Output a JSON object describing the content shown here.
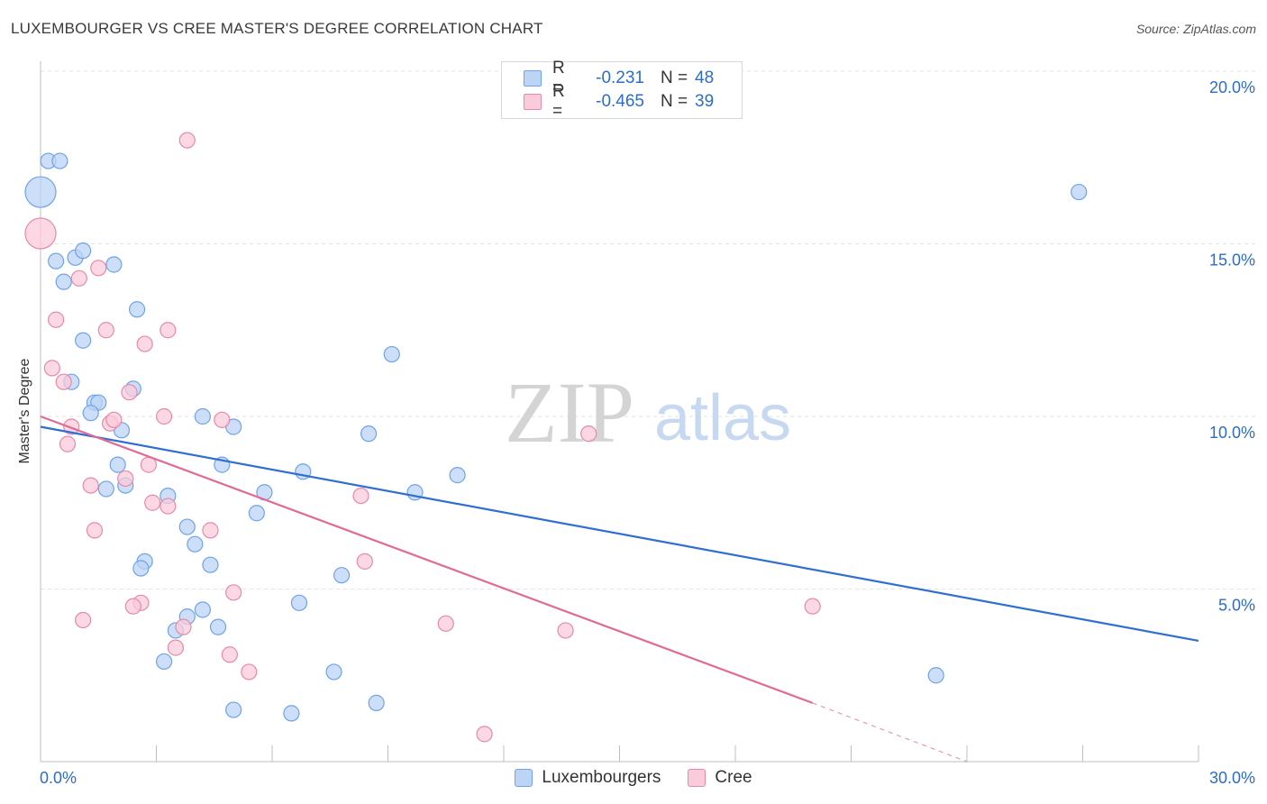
{
  "title": "LUXEMBOURGER VS CREE MASTER'S DEGREE CORRELATION CHART",
  "source": "Source: ZipAtlas.com",
  "watermark": {
    "zip": "ZIP",
    "atlas": "atlas"
  },
  "stats": [
    {
      "label": "R =",
      "r": "-0.231",
      "n_label": "N =",
      "n": "48",
      "color": "#6fa3e5",
      "fill": "#bcd4f5"
    },
    {
      "label": "R =",
      "r": "-0.465",
      "n_label": "N =",
      "n": "39",
      "color": "#e68aa8",
      "fill": "#f9cbdb"
    }
  ],
  "legend": [
    {
      "label": "Luxembourgers",
      "color": "#6fa3e5",
      "fill": "#bcd4f5"
    },
    {
      "label": "Cree",
      "color": "#e68aa8",
      "fill": "#f9cbdb"
    }
  ],
  "chart_data": {
    "type": "scatter",
    "title": "LUXEMBOURGER VS CREE MASTER'S DEGREE CORRELATION CHART",
    "xlabel": "",
    "ylabel": "Master's Degree",
    "xlim": [
      0,
      30
    ],
    "ylim": [
      0,
      20
    ],
    "x_ticks": [
      0,
      3,
      6,
      9,
      12,
      15,
      18,
      21,
      24,
      27,
      30
    ],
    "x_tick_labels": [
      {
        "value": 0,
        "label": "0.0%"
      },
      {
        "value": 30,
        "label": "30.0%"
      }
    ],
    "y_tick_labels": [
      {
        "value": 5,
        "label": "5.0%"
      },
      {
        "value": 10,
        "label": "10.0%"
      },
      {
        "value": 15,
        "label": "15.0%"
      },
      {
        "value": 20,
        "label": "20.0%"
      }
    ],
    "series": [
      {
        "name": "Luxembourgers",
        "color": "#2f6fd1",
        "point_fill": "#bcd4f5",
        "point_stroke": "#6fa3e5",
        "trend": {
          "x0": 0,
          "y0": 9.7,
          "x1": 30,
          "y1": 3.5
        },
        "points": [
          {
            "x": 0.2,
            "y": 17.4
          },
          {
            "x": 0.5,
            "y": 17.4
          },
          {
            "x": 0.0,
            "y": 16.5,
            "big": true
          },
          {
            "x": 0.4,
            "y": 14.5
          },
          {
            "x": 0.9,
            "y": 14.6
          },
          {
            "x": 1.1,
            "y": 14.8
          },
          {
            "x": 1.9,
            "y": 14.4
          },
          {
            "x": 0.6,
            "y": 13.9
          },
          {
            "x": 2.5,
            "y": 13.1
          },
          {
            "x": 1.1,
            "y": 12.2
          },
          {
            "x": 0.8,
            "y": 11.0
          },
          {
            "x": 2.4,
            "y": 10.8
          },
          {
            "x": 1.4,
            "y": 10.4
          },
          {
            "x": 1.5,
            "y": 10.4
          },
          {
            "x": 1.3,
            "y": 10.1
          },
          {
            "x": 4.2,
            "y": 10.0
          },
          {
            "x": 5.0,
            "y": 9.7
          },
          {
            "x": 2.1,
            "y": 9.6
          },
          {
            "x": 8.5,
            "y": 9.5
          },
          {
            "x": 9.1,
            "y": 11.8
          },
          {
            "x": 2.0,
            "y": 8.6
          },
          {
            "x": 4.7,
            "y": 8.6
          },
          {
            "x": 6.8,
            "y": 8.4
          },
          {
            "x": 10.8,
            "y": 8.3
          },
          {
            "x": 1.7,
            "y": 7.9
          },
          {
            "x": 2.2,
            "y": 8.0
          },
          {
            "x": 3.3,
            "y": 7.7
          },
          {
            "x": 5.8,
            "y": 7.8
          },
          {
            "x": 9.7,
            "y": 7.8
          },
          {
            "x": 5.6,
            "y": 7.2
          },
          {
            "x": 3.8,
            "y": 6.8
          },
          {
            "x": 4.0,
            "y": 6.3
          },
          {
            "x": 2.7,
            "y": 5.8
          },
          {
            "x": 2.6,
            "y": 5.6
          },
          {
            "x": 4.4,
            "y": 5.7
          },
          {
            "x": 7.8,
            "y": 5.4
          },
          {
            "x": 6.7,
            "y": 4.6
          },
          {
            "x": 4.2,
            "y": 4.4
          },
          {
            "x": 3.8,
            "y": 4.2
          },
          {
            "x": 3.5,
            "y": 3.8
          },
          {
            "x": 4.6,
            "y": 3.9
          },
          {
            "x": 3.2,
            "y": 2.9
          },
          {
            "x": 7.6,
            "y": 2.6
          },
          {
            "x": 5.0,
            "y": 1.5
          },
          {
            "x": 6.5,
            "y": 1.4
          },
          {
            "x": 8.7,
            "y": 1.7
          },
          {
            "x": 26.9,
            "y": 16.5
          },
          {
            "x": 23.2,
            "y": 2.5
          }
        ]
      },
      {
        "name": "Cree",
        "color": "#e06b96",
        "point_fill": "#f9cbdb",
        "point_stroke": "#e68aa8",
        "trend": {
          "x0": 0,
          "y0": 10.0,
          "x1": 20.0,
          "y1": 1.7,
          "dashed_to": {
            "x": 24.0,
            "y": 0.0
          }
        },
        "points": [
          {
            "x": 0.0,
            "y": 15.3,
            "big": true
          },
          {
            "x": 3.8,
            "y": 18.0
          },
          {
            "x": 1.5,
            "y": 14.3
          },
          {
            "x": 1.0,
            "y": 14.0
          },
          {
            "x": 0.4,
            "y": 12.8
          },
          {
            "x": 1.7,
            "y": 12.5
          },
          {
            "x": 3.3,
            "y": 12.5
          },
          {
            "x": 2.7,
            "y": 12.1
          },
          {
            "x": 0.3,
            "y": 11.4
          },
          {
            "x": 0.6,
            "y": 11.0
          },
          {
            "x": 2.3,
            "y": 10.7
          },
          {
            "x": 3.2,
            "y": 10.0
          },
          {
            "x": 1.8,
            "y": 9.8
          },
          {
            "x": 1.9,
            "y": 9.9
          },
          {
            "x": 4.7,
            "y": 9.9
          },
          {
            "x": 0.8,
            "y": 9.7
          },
          {
            "x": 0.7,
            "y": 9.2
          },
          {
            "x": 2.8,
            "y": 8.6
          },
          {
            "x": 14.2,
            "y": 9.5
          },
          {
            "x": 2.2,
            "y": 8.2
          },
          {
            "x": 1.3,
            "y": 8.0
          },
          {
            "x": 8.3,
            "y": 7.7
          },
          {
            "x": 2.9,
            "y": 7.5
          },
          {
            "x": 3.3,
            "y": 7.4
          },
          {
            "x": 1.4,
            "y": 6.7
          },
          {
            "x": 4.4,
            "y": 6.7
          },
          {
            "x": 8.4,
            "y": 5.8
          },
          {
            "x": 5.0,
            "y": 4.9
          },
          {
            "x": 2.6,
            "y": 4.6
          },
          {
            "x": 2.4,
            "y": 4.5
          },
          {
            "x": 20.0,
            "y": 4.5
          },
          {
            "x": 1.1,
            "y": 4.1
          },
          {
            "x": 10.5,
            "y": 4.0
          },
          {
            "x": 3.7,
            "y": 3.9
          },
          {
            "x": 13.6,
            "y": 3.8
          },
          {
            "x": 3.5,
            "y": 3.3
          },
          {
            "x": 4.9,
            "y": 3.1
          },
          {
            "x": 5.4,
            "y": 2.6
          },
          {
            "x": 11.5,
            "y": 0.8
          }
        ]
      }
    ]
  }
}
